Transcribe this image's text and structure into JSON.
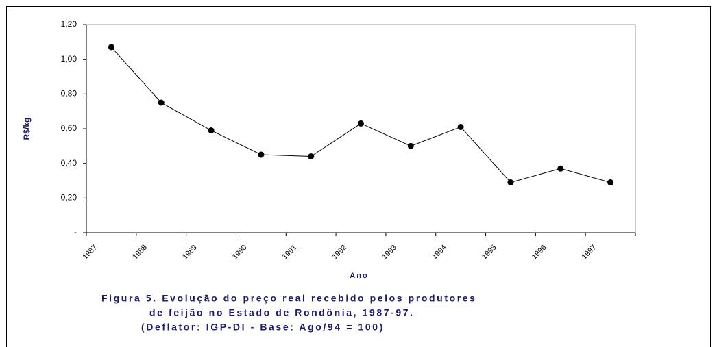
{
  "chart_data": {
    "type": "line",
    "categories": [
      "1987",
      "1988",
      "1989",
      "1990",
      "1991",
      "1992",
      "1993",
      "1994",
      "1995",
      "1996",
      "1997"
    ],
    "values": [
      1.07,
      0.75,
      0.59,
      0.45,
      0.44,
      0.63,
      0.5,
      0.61,
      0.29,
      0.37,
      0.29
    ],
    "color": "#000000",
    "ylim": [
      0,
      1.2
    ],
    "yticks": [
      {
        "value": 0,
        "label": "-"
      },
      {
        "value": 0.2,
        "label": "0,20"
      },
      {
        "value": 0.4,
        "label": "0,40"
      },
      {
        "value": 0.6,
        "label": "0,60"
      },
      {
        "value": 0.8,
        "label": "0,80"
      },
      {
        "value": 1.0,
        "label": "1,00"
      },
      {
        "value": 1.2,
        "label": "1,20"
      }
    ],
    "y_label": "R$/kg",
    "x_label": "Ano",
    "caption": [
      "Figura 5. Evolução do preço real recebido pelos produtores",
      "de feijão no Estado de Rondônia, 1987-97.",
      "(Deflator: IGP-DI - Base: Ago/94 = 100)"
    ]
  }
}
